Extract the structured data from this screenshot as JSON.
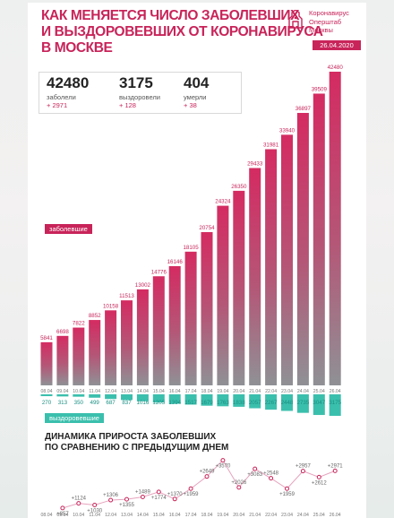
{
  "header": {
    "title_lines": [
      "КАК МЕНЯЕТСЯ ЧИСЛО ЗАБОЛЕВШИХ",
      "И ВЫЗДОРОВЕВШИХ ОТ КОРОНАВИРУСА",
      "В МОСКВЕ"
    ],
    "brand_lines": [
      "Коронавирус",
      "Оперштаб",
      "Москвы"
    ],
    "brand_icon": "kremlin-logo-icon",
    "date": "26.04.2020"
  },
  "stats": [
    {
      "value": "42480",
      "label": "заболели",
      "delta": "+ 2971"
    },
    {
      "value": "3175",
      "label": "выздоровели",
      "delta": "+ 128"
    },
    {
      "value": "404",
      "label": "умерли",
      "delta": "+ 38"
    }
  ],
  "legend": {
    "sick": "заболевшие",
    "recovered": "выздоровевшие"
  },
  "subchart_title": [
    "ДИНАМИКА ПРИРОСТА ЗАБОЛЕВШИХ",
    "ПО СРАВНЕНИЮ С ПРЕДЫДУЩИМ ДНЕМ"
  ],
  "colors": {
    "accent": "#c8245a",
    "sick_top": "#d42b62",
    "sick_bottom": "#8f9195",
    "recovered": "#3bbfad"
  },
  "chart_data": [
    {
      "type": "bar",
      "categories": [
        "08.04",
        "09.04",
        "10.04",
        "11.04",
        "12.04",
        "13.04",
        "14.04",
        "15.04",
        "16.04",
        "17.04",
        "18.04",
        "19.04",
        "20.04",
        "21.04",
        "22.04",
        "23.04",
        "24.04",
        "25.04",
        "26.04"
      ],
      "series": [
        {
          "name": "заболевшие",
          "values": [
            5841,
            6698,
            7822,
            8852,
            10158,
            11513,
            13002,
            14776,
            16146,
            18105,
            20754,
            24324,
            26350,
            29433,
            31981,
            33940,
            36897,
            39509,
            42480
          ]
        },
        {
          "name": "выздоровевшие",
          "values": [
            270,
            313,
            350,
            499,
            687,
            837,
            1016,
            1205,
            1394,
            1517,
            1679,
            1763,
            1838,
            2057,
            2267,
            2448,
            2735,
            3047,
            3175
          ]
        }
      ],
      "title": "",
      "xlabel": "",
      "ylabel": ""
    },
    {
      "type": "line",
      "x": [
        "08.04",
        "09.04",
        "10.04",
        "11.04",
        "12.04",
        "13.04",
        "14.04",
        "15.04",
        "16.04",
        "17.04",
        "18.04",
        "19.04",
        "20.04",
        "21.04",
        "22.04",
        "23.04",
        "24.04",
        "25.04",
        "26.04"
      ],
      "labels": [
        "+857",
        "+1124",
        "+1030",
        "+1306",
        "+1355",
        "+1489",
        "+1774",
        "+1370",
        "+1959",
        "+2649",
        "+3570",
        "+2026",
        "+3083",
        "+2548",
        "+1959",
        "+2957",
        "+2612",
        "+2971"
      ],
      "values": [
        null,
        857,
        1124,
        1030,
        1306,
        1355,
        1489,
        1774,
        1370,
        1959,
        2649,
        3570,
        2026,
        3083,
        2548,
        1959,
        2957,
        2612,
        2971
      ],
      "title": "ДИНАМИКА ПРИРОСТА ЗАБОЛЕВШИХ ПО СРАВНЕНИЮ С ПРЕДЫДУЩИМ ДНЕМ"
    }
  ]
}
